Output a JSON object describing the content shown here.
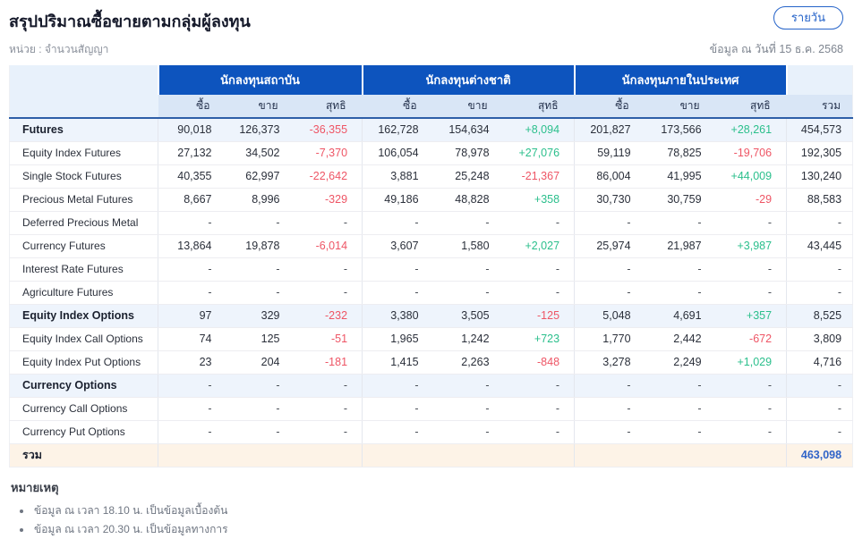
{
  "header": {
    "title": "สรุปปริมาณซื้อขายตามกลุ่มผู้ลงทุน",
    "unit_label": "หน่วย : จำนวนสัญญา",
    "daily_button_label": "รายวัน",
    "as_of": "ข้อมูล ณ วันที่ 15 ธ.ค. 2568"
  },
  "table": {
    "groups": [
      "นักลงทุนสถาบัน",
      "นักลงทุนต่างชาติ",
      "นักลงทุนภายในประเทศ"
    ],
    "sub_headers": [
      "ซื้อ",
      "ขาย",
      "สุทธิ"
    ],
    "total_header": "รวม",
    "rows": [
      {
        "label": "Futures",
        "section": true,
        "cells": [
          "90,018",
          "126,373",
          "-36,355",
          "162,728",
          "154,634",
          "+8,094",
          "201,827",
          "173,566",
          "+28,261"
        ],
        "total": "454,573"
      },
      {
        "label": "Equity Index Futures",
        "section": false,
        "cells": [
          "27,132",
          "34,502",
          "-7,370",
          "106,054",
          "78,978",
          "+27,076",
          "59,119",
          "78,825",
          "-19,706"
        ],
        "total": "192,305"
      },
      {
        "label": "Single Stock Futures",
        "section": false,
        "cells": [
          "40,355",
          "62,997",
          "-22,642",
          "3,881",
          "25,248",
          "-21,367",
          "86,004",
          "41,995",
          "+44,009"
        ],
        "total": "130,240"
      },
      {
        "label": "Precious Metal Futures",
        "section": false,
        "cells": [
          "8,667",
          "8,996",
          "-329",
          "49,186",
          "48,828",
          "+358",
          "30,730",
          "30,759",
          "-29"
        ],
        "total": "88,583"
      },
      {
        "label": "Deferred Precious Metal",
        "section": false,
        "cells": [
          "-",
          "-",
          "-",
          "-",
          "-",
          "-",
          "-",
          "-",
          "-"
        ],
        "total": "-"
      },
      {
        "label": "Currency Futures",
        "section": false,
        "cells": [
          "13,864",
          "19,878",
          "-6,014",
          "3,607",
          "1,580",
          "+2,027",
          "25,974",
          "21,987",
          "+3,987"
        ],
        "total": "43,445"
      },
      {
        "label": "Interest Rate Futures",
        "section": false,
        "cells": [
          "-",
          "-",
          "-",
          "-",
          "-",
          "-",
          "-",
          "-",
          "-"
        ],
        "total": "-"
      },
      {
        "label": "Agriculture Futures",
        "section": false,
        "cells": [
          "-",
          "-",
          "-",
          "-",
          "-",
          "-",
          "-",
          "-",
          "-"
        ],
        "total": "-"
      },
      {
        "label": "Equity Index Options",
        "section": true,
        "cells": [
          "97",
          "329",
          "-232",
          "3,380",
          "3,505",
          "-125",
          "5,048",
          "4,691",
          "+357"
        ],
        "total": "8,525"
      },
      {
        "label": "Equity Index Call Options",
        "section": false,
        "cells": [
          "74",
          "125",
          "-51",
          "1,965",
          "1,242",
          "+723",
          "1,770",
          "2,442",
          "-672"
        ],
        "total": "3,809"
      },
      {
        "label": "Equity Index Put Options",
        "section": false,
        "cells": [
          "23",
          "204",
          "-181",
          "1,415",
          "2,263",
          "-848",
          "3,278",
          "2,249",
          "+1,029"
        ],
        "total": "4,716"
      },
      {
        "label": "Currency Options",
        "section": true,
        "cells": [
          "-",
          "-",
          "-",
          "-",
          "-",
          "-",
          "-",
          "-",
          "-"
        ],
        "total": "-"
      },
      {
        "label": "Currency Call Options",
        "section": false,
        "cells": [
          "-",
          "-",
          "-",
          "-",
          "-",
          "-",
          "-",
          "-",
          "-"
        ],
        "total": "-"
      },
      {
        "label": "Currency Put Options",
        "section": false,
        "cells": [
          "-",
          "-",
          "-",
          "-",
          "-",
          "-",
          "-",
          "-",
          "-"
        ],
        "total": "-"
      },
      {
        "label": "รวม",
        "grand": true,
        "cells": [
          "",
          "",
          "",
          "",
          "",
          "",
          "",
          "",
          ""
        ],
        "total": "463,098"
      }
    ]
  },
  "notes": {
    "title": "หมายเหตุ",
    "items": [
      "ข้อมูล ณ เวลา 18.10 น. เป็นข้อมูลเบื้องต้น",
      "ข้อมูล ณ เวลา 20.30 น. เป็นข้อมูลทางการ"
    ]
  },
  "colors": {
    "header-blue": "#0d54be",
    "header-light": "#d9e6f6",
    "section-row": "#eef4fc",
    "grand-row": "#fdf3e7",
    "positive": "#2bbf8c",
    "negative": "#ee5565",
    "total-text": "#3064c8",
    "accent": "#2563c9"
  }
}
